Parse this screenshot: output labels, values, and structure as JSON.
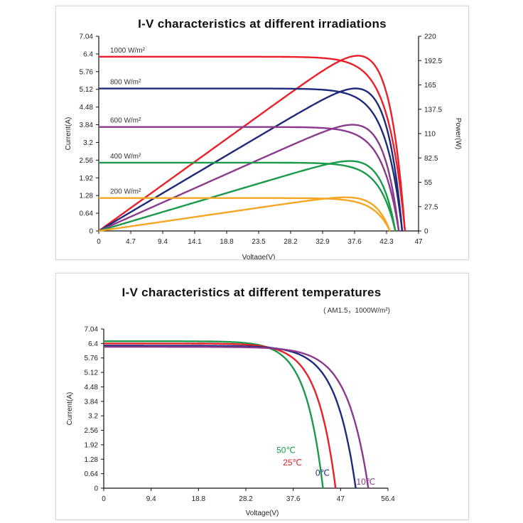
{
  "chart_data": [
    {
      "type": "line",
      "title": "I-V characteristics at different irradiations",
      "xlabel": "Voltage(V)",
      "ylabel": "Current(A)",
      "y2label": "Power(W)",
      "xlim": [
        0,
        47
      ],
      "ylim": [
        0,
        7.04
      ],
      "y2lim": [
        0,
        220
      ],
      "x_ticks": [
        "0",
        "4.7",
        "9.4",
        "14.1",
        "18.8",
        "23.5",
        "28.2",
        "32.9",
        "37.6",
        "42.3",
        "47"
      ],
      "y_ticks": [
        "0",
        "0.64",
        "1.28",
        "1.92",
        "2.56",
        "3.2",
        "3.84",
        "4.48",
        "5.12",
        "5.76",
        "6.4",
        "7.04"
      ],
      "y2_ticks": [
        "0",
        "27.5",
        "55",
        "82.5",
        "110",
        "137.5",
        "165",
        "192.5",
        "220"
      ],
      "series": [
        {
          "name": "1000 W/m²",
          "color": "#e8202a",
          "isc": 6.3,
          "voc": 45.0,
          "pmax": 198
        },
        {
          "name": "800 W/m²",
          "color": "#1f2a7a",
          "isc": 5.15,
          "voc": 44.6,
          "pmax": 161
        },
        {
          "name": "600 W/m²",
          "color": "#8a3a8c",
          "isc": 3.76,
          "voc": 44.1,
          "pmax": 120
        },
        {
          "name": "400 W/m²",
          "color": "#1a9a4a",
          "isc": 2.47,
          "voc": 43.6,
          "pmax": 79
        },
        {
          "name": "200 W/m²",
          "color": "#f5a623",
          "isc": 1.19,
          "voc": 42.8,
          "pmax": 38
        }
      ]
    },
    {
      "type": "line",
      "title": "I-V characteristics at different temperatures",
      "subtitle": "( AM1.5，1000W/m²)",
      "xlabel": "Voltage(V)",
      "ylabel": "Current(A)",
      "xlim": [
        0,
        56.4
      ],
      "ylim": [
        0,
        7.04
      ],
      "x_ticks": [
        "0",
        "9.4",
        "18.8",
        "28.2",
        "37.6",
        "47",
        "56.4"
      ],
      "y_ticks": [
        "0",
        "0.64",
        "1.28",
        "1.92",
        "2.56",
        "3.2",
        "3.84",
        "4.48",
        "5.12",
        "5.76",
        "6.4",
        "7.04"
      ],
      "series": [
        {
          "name": "50℃",
          "color": "#1a9a4a",
          "isc": 6.5,
          "voc": 43.5
        },
        {
          "name": "25℃",
          "color": "#e8202a",
          "isc": 6.4,
          "voc": 46.0
        },
        {
          "name": "0℃",
          "color": "#1f2a7a",
          "isc": 6.3,
          "voc": 50.0
        },
        {
          "name": "-10℃",
          "color": "#8a3a8c",
          "isc": 6.25,
          "voc": 52.5
        }
      ]
    }
  ]
}
